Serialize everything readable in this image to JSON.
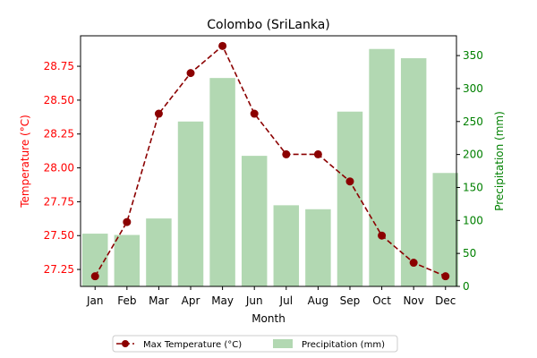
{
  "chart_data": {
    "type": "bar",
    "title": "Colombo (SriLanka)",
    "xlabel": "Month",
    "ylabel_left": "Temperature (°C)",
    "ylabel_right": "Precipitation (mm)",
    "categories": [
      "Jan",
      "Feb",
      "Mar",
      "Apr",
      "May",
      "Jun",
      "Jul",
      "Aug",
      "Sep",
      "Oct",
      "Nov",
      "Dec"
    ],
    "series": [
      {
        "name": "Max Temperature (°C)",
        "type": "line",
        "axis": "left",
        "color": "#8b0000",
        "values": [
          27.2,
          27.6,
          28.4,
          28.7,
          28.9,
          28.4,
          28.1,
          28.1,
          27.9,
          27.5,
          27.3,
          27.2
        ]
      },
      {
        "name": "Precipitation (mm)",
        "type": "bar",
        "axis": "right",
        "color": "#b2d8b2",
        "values": [
          80,
          78,
          103,
          250,
          316,
          198,
          123,
          117,
          265,
          360,
          346,
          172
        ]
      }
    ],
    "ylim_left": [
      27.125,
      28.975
    ],
    "yticks_left": [
      "27.25",
      "27.50",
      "27.75",
      "28.00",
      "28.25",
      "28.50",
      "28.75"
    ],
    "ylim_right": [
      0,
      380
    ],
    "yticks_right": [
      "0",
      "50",
      "100",
      "150",
      "200",
      "250",
      "300",
      "350"
    ],
    "left_axis_color": "#ff0000",
    "right_axis_color": "#008000",
    "legend_position": "bottom-center",
    "grid": false
  }
}
